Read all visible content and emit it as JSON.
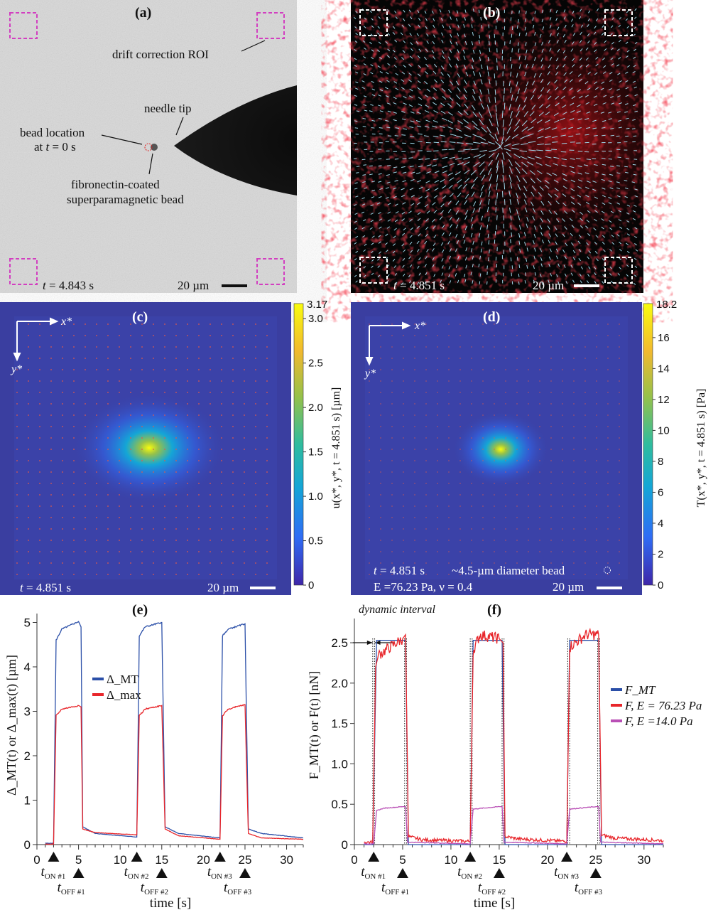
{
  "panels": {
    "a": {
      "label": "(a)",
      "annotations": {
        "roi": "drift correction ROI",
        "needle": "needle tip",
        "bead_loc_1": "bead location",
        "bead_loc_2_prefix": "at ",
        "bead_loc_2_var": "t",
        "bead_loc_2_suffix": " = 0 s",
        "bead_1": "fibronectin-coated",
        "bead_2": "superparamagnetic bead"
      },
      "time_var": "t",
      "time": " = 4.843 s",
      "scalebar": "20 µm",
      "roi_color": "#d23fc0"
    },
    "b": {
      "label": "(b)",
      "time_var": "t",
      "time": " = 4.851 s",
      "scalebar": "20 µm"
    },
    "c": {
      "label": "(c)",
      "axis_x": "x*",
      "axis_y": "y*",
      "time_var": "t",
      "time": " = 4.851 s",
      "scalebar": "20 µm",
      "colorbar": {
        "max_label": "3.17",
        "ticks": [
          "3.0",
          "2.5",
          "2.0",
          "1.5",
          "1.0",
          "0.5",
          "0"
        ],
        "tick_values": [
          3.0,
          2.5,
          2.0,
          1.5,
          1.0,
          0.5,
          0
        ],
        "max": 3.17,
        "title": "u(x*, y*, t = 4.851 s)  [µm]"
      }
    },
    "d": {
      "label": "(d)",
      "axis_x": "x*",
      "axis_y": "y*",
      "time_var": "t",
      "time": " = 4.851 s",
      "bead_note": "~4.5-µm diameter bead",
      "params": "E =76.23 Pa, ν = 0.4",
      "scalebar": "20 µm",
      "colorbar": {
        "max_label": "18.2",
        "ticks": [
          "16",
          "14",
          "12",
          "10",
          "8",
          "6",
          "4",
          "2",
          "0"
        ],
        "tick_values": [
          16,
          14,
          12,
          10,
          8,
          6,
          4,
          2,
          0
        ],
        "max": 18.2,
        "title": "T(x*, y*, t = 4.851 s)  [Pa]"
      }
    }
  },
  "colormap": [
    "#3e26a8",
    "#2f6cf5",
    "#14a6d6",
    "#2fbc9e",
    "#96c14a",
    "#f1b92f",
    "#f9fb0e"
  ],
  "chart_data": [
    {
      "panel": "(e)",
      "type": "line",
      "xlabel": "time [s]",
      "ylabel": "Δ_MT(t) or Δ_max(t)  [µm]",
      "xlim": [
        0,
        32
      ],
      "ylim": [
        0,
        5.2
      ],
      "xticks": [
        0,
        5,
        10,
        15,
        20,
        25,
        30
      ],
      "yticks": [
        0,
        1,
        2,
        3,
        4,
        5
      ],
      "legend": "center-left",
      "markers": [
        {
          "label": "t",
          "sub": "ON #1",
          "t": 2
        },
        {
          "label": "t",
          "sub": "OFF #1",
          "t": 5
        },
        {
          "label": "t",
          "sub": "ON #2",
          "t": 12
        },
        {
          "label": "t",
          "sub": "OFF #2",
          "t": 15
        },
        {
          "label": "t",
          "sub": "ON #3",
          "t": 22
        },
        {
          "label": "t",
          "sub": "OFF #3",
          "t": 25
        }
      ],
      "series": [
        {
          "name": "Δ_MT",
          "color": "#2b4fa8",
          "points": [
            [
              1,
              0.03
            ],
            [
              2,
              0.03
            ],
            [
              2.3,
              4.6
            ],
            [
              3,
              4.85
            ],
            [
              5,
              5.02
            ],
            [
              5.3,
              4.9
            ],
            [
              5.5,
              0.4
            ],
            [
              7,
              0.25
            ],
            [
              12,
              0.17
            ],
            [
              12.3,
              4.7
            ],
            [
              13,
              4.9
            ],
            [
              15,
              5.0
            ],
            [
              15.4,
              0.4
            ],
            [
              17,
              0.25
            ],
            [
              22,
              0.15
            ],
            [
              22.3,
              4.7
            ],
            [
              23,
              4.85
            ],
            [
              25,
              4.97
            ],
            [
              25.4,
              0.35
            ],
            [
              27,
              0.25
            ],
            [
              32,
              0.15
            ]
          ]
        },
        {
          "name": "Δ_max",
          "color": "#e8262b",
          "points": [
            [
              1,
              0.01
            ],
            [
              2,
              0.01
            ],
            [
              2.3,
              2.9
            ],
            [
              3,
              3.05
            ],
            [
              5,
              3.13
            ],
            [
              5.3,
              3.1
            ],
            [
              5.5,
              0.35
            ],
            [
              7,
              0.27
            ],
            [
              12,
              0.22
            ],
            [
              12.3,
              2.9
            ],
            [
              13,
              3.05
            ],
            [
              15,
              3.13
            ],
            [
              15.4,
              0.35
            ],
            [
              17,
              0.2
            ],
            [
              22,
              0.12
            ],
            [
              22.3,
              2.9
            ],
            [
              23,
              3.05
            ],
            [
              25,
              3.15
            ],
            [
              25.4,
              0.25
            ],
            [
              27,
              0.15
            ],
            [
              32,
              0.12
            ]
          ]
        }
      ]
    },
    {
      "panel": "(f)",
      "type": "line",
      "xlabel": "time [s]",
      "ylabel": "F_MT(t) or F(t)  [nN]",
      "xlim": [
        0,
        32
      ],
      "ylim": [
        0,
        2.8
      ],
      "xticks": [
        0,
        5,
        10,
        15,
        20,
        25,
        30
      ],
      "yticks": [
        0,
        0.5,
        1.0,
        1.5,
        2.0,
        2.5
      ],
      "ytick_labels": [
        "0",
        "0.5",
        "1.0",
        "1.5",
        "2.0",
        "2.5"
      ],
      "legend": "right",
      "annotation": "dynamic interval",
      "dotted_lines": [
        1.9,
        2.1,
        5.2,
        5.4,
        12.0,
        12.2,
        15.3,
        15.5,
        22.1,
        22.3,
        25.2,
        25.4
      ],
      "markers": [
        {
          "label": "t",
          "sub": "ON #1",
          "t": 2
        },
        {
          "label": "t",
          "sub": "OFF #1",
          "t": 5
        },
        {
          "label": "t",
          "sub": "ON #2",
          "t": 12
        },
        {
          "label": "t",
          "sub": "OFF #2",
          "t": 15
        },
        {
          "label": "t",
          "sub": "ON #3",
          "t": 22
        },
        {
          "label": "t",
          "sub": "OFF #3",
          "t": 25
        }
      ],
      "series": [
        {
          "name": "F_MT",
          "color": "#2b4fa8",
          "points": [
            [
              1,
              0
            ],
            [
              1.9,
              0
            ],
            [
              2.3,
              2.53
            ],
            [
              5.3,
              2.53
            ],
            [
              5.6,
              0
            ],
            [
              12,
              0
            ],
            [
              12.3,
              2.53
            ],
            [
              15.3,
              2.53
            ],
            [
              15.6,
              0
            ],
            [
              22,
              0
            ],
            [
              22.3,
              2.53
            ],
            [
              25.3,
              2.53
            ],
            [
              25.6,
              0
            ],
            [
              32,
              0
            ]
          ]
        },
        {
          "name": "F, E = 76.23 Pa",
          "color": "#e8262b",
          "points": [
            [
              1,
              0.03
            ],
            [
              1.9,
              0.03
            ],
            [
              2.2,
              2.2
            ],
            [
              2.5,
              2.35
            ],
            [
              5,
              2.55
            ],
            [
              5.3,
              2.6
            ],
            [
              5.6,
              0.1
            ],
            [
              7,
              0.06
            ],
            [
              12,
              0.04
            ],
            [
              12.3,
              2.4
            ],
            [
              13,
              2.6
            ],
            [
              15,
              2.55
            ],
            [
              15.4,
              2.5
            ],
            [
              15.6,
              0.1
            ],
            [
              17,
              0.07
            ],
            [
              22,
              0.04
            ],
            [
              22.3,
              2.45
            ],
            [
              24,
              2.6
            ],
            [
              25.3,
              2.6
            ],
            [
              25.6,
              0.12
            ],
            [
              27,
              0.08
            ],
            [
              32,
              0.05
            ]
          ]
        },
        {
          "name": "F, E =14.0 Pa",
          "color": "#b94fb5",
          "points": [
            [
              1,
              0.01
            ],
            [
              2,
              0.01
            ],
            [
              2.3,
              0.42
            ],
            [
              3,
              0.45
            ],
            [
              5,
              0.47
            ],
            [
              5.3,
              0.47
            ],
            [
              5.5,
              0.03
            ],
            [
              12,
              0.01
            ],
            [
              12.3,
              0.44
            ],
            [
              15,
              0.47
            ],
            [
              15.3,
              0.47
            ],
            [
              15.5,
              0.03
            ],
            [
              22,
              0.01
            ],
            [
              22.3,
              0.44
            ],
            [
              25,
              0.47
            ],
            [
              25.3,
              0.47
            ],
            [
              25.5,
              0.03
            ],
            [
              32,
              0.01
            ]
          ]
        }
      ]
    }
  ]
}
